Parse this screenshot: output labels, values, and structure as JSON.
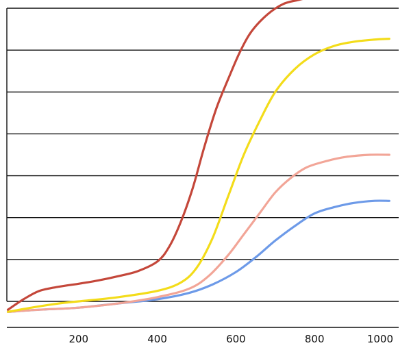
{
  "chart_data": {
    "type": "line",
    "title": "",
    "xlabel": "",
    "ylabel": "",
    "xlim": [
      0,
      1000
    ],
    "ylim": [
      0,
      7.2
    ],
    "x_ticks": [
      200,
      400,
      600,
      800,
      1000
    ],
    "x_tick_labels": [
      "200",
      "400",
      "600",
      "800",
      "1000"
    ],
    "y_gridlines": [
      0,
      1,
      2,
      3,
      4,
      5,
      6,
      7
    ],
    "grid": "horizontal",
    "legend": "none",
    "series": [
      {
        "color": "#c4473a",
        "x": [
          20,
          60,
          100,
          150,
          200,
          250,
          300,
          350,
          400,
          430,
          460,
          490,
          520,
          550,
          580,
          610,
          640,
          680,
          720,
          760,
          800,
          850,
          880
        ],
        "y": [
          -0.2,
          0.05,
          0.25,
          0.35,
          0.42,
          0.5,
          0.6,
          0.72,
          0.95,
          1.3,
          1.9,
          2.7,
          3.7,
          4.6,
          5.3,
          5.95,
          6.45,
          6.85,
          7.1,
          7.2,
          7.28,
          7.35,
          7.35
        ]
      },
      {
        "color": "#f3dc1a",
        "x": [
          20,
          80,
          150,
          200,
          300,
          400,
          460,
          500,
          540,
          580,
          620,
          660,
          700,
          750,
          800,
          850,
          900,
          950,
          990
        ],
        "y": [
          -0.25,
          -0.15,
          -0.05,
          0.0,
          0.1,
          0.25,
          0.45,
          0.8,
          1.5,
          2.5,
          3.5,
          4.3,
          5.0,
          5.55,
          5.9,
          6.1,
          6.2,
          6.25,
          6.27
        ]
      },
      {
        "color": "#f2a597",
        "x": [
          20,
          100,
          200,
          300,
          400,
          480,
          530,
          580,
          620,
          660,
          700,
          740,
          780,
          830,
          880,
          940,
          990
        ],
        "y": [
          -0.25,
          -0.2,
          -0.15,
          -0.05,
          0.1,
          0.3,
          0.6,
          1.1,
          1.6,
          2.1,
          2.6,
          2.95,
          3.2,
          3.35,
          3.45,
          3.5,
          3.5
        ]
      },
      {
        "color": "#6d9ae8",
        "x": [
          20,
          100,
          200,
          300,
          400,
          480,
          540,
          600,
          650,
          700,
          750,
          800,
          850,
          900,
          950,
          990
        ],
        "y": [
          -0.25,
          -0.2,
          -0.15,
          -0.05,
          0.05,
          0.2,
          0.4,
          0.7,
          1.05,
          1.45,
          1.8,
          2.1,
          2.25,
          2.35,
          2.4,
          2.4
        ]
      }
    ]
  }
}
